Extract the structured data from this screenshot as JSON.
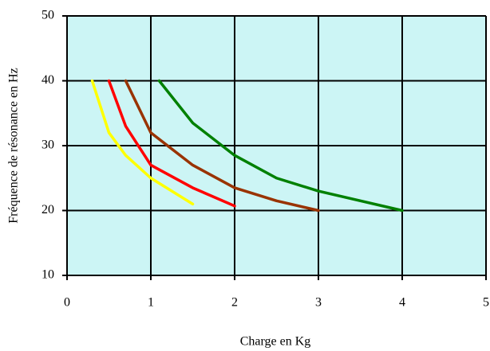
{
  "chart_data": {
    "type": "line",
    "x_label": "Charge en Kg",
    "y_label": "Fréquence de résonance en Hz",
    "xlim": [
      0,
      5
    ],
    "xticks": [
      0,
      1,
      2,
      3,
      4,
      5
    ],
    "ylim": [
      10,
      50
    ],
    "yticks": [
      10,
      20,
      30,
      40,
      50
    ],
    "grid": true,
    "background": "#ccf5f5",
    "series": [
      {
        "color": "#ffff00",
        "x": [
          0.3,
          0.5,
          0.7,
          1,
          1.5
        ],
        "values": [
          40,
          32,
          28.5,
          25,
          21
        ]
      },
      {
        "color": "#ff0000",
        "x": [
          0.5,
          0.7,
          1,
          1.5,
          2
        ],
        "values": [
          40,
          33,
          27,
          23.5,
          20.7
        ]
      },
      {
        "color": "#993300",
        "x": [
          0.7,
          1,
          1.5,
          2,
          2.5,
          3
        ],
        "values": [
          40,
          32,
          27,
          23.5,
          21.5,
          20
        ]
      },
      {
        "color": "#008000",
        "x": [
          1.1,
          1.5,
          2,
          2.5,
          3,
          4
        ],
        "values": [
          40,
          33.5,
          28.5,
          25,
          23,
          20
        ]
      }
    ]
  }
}
